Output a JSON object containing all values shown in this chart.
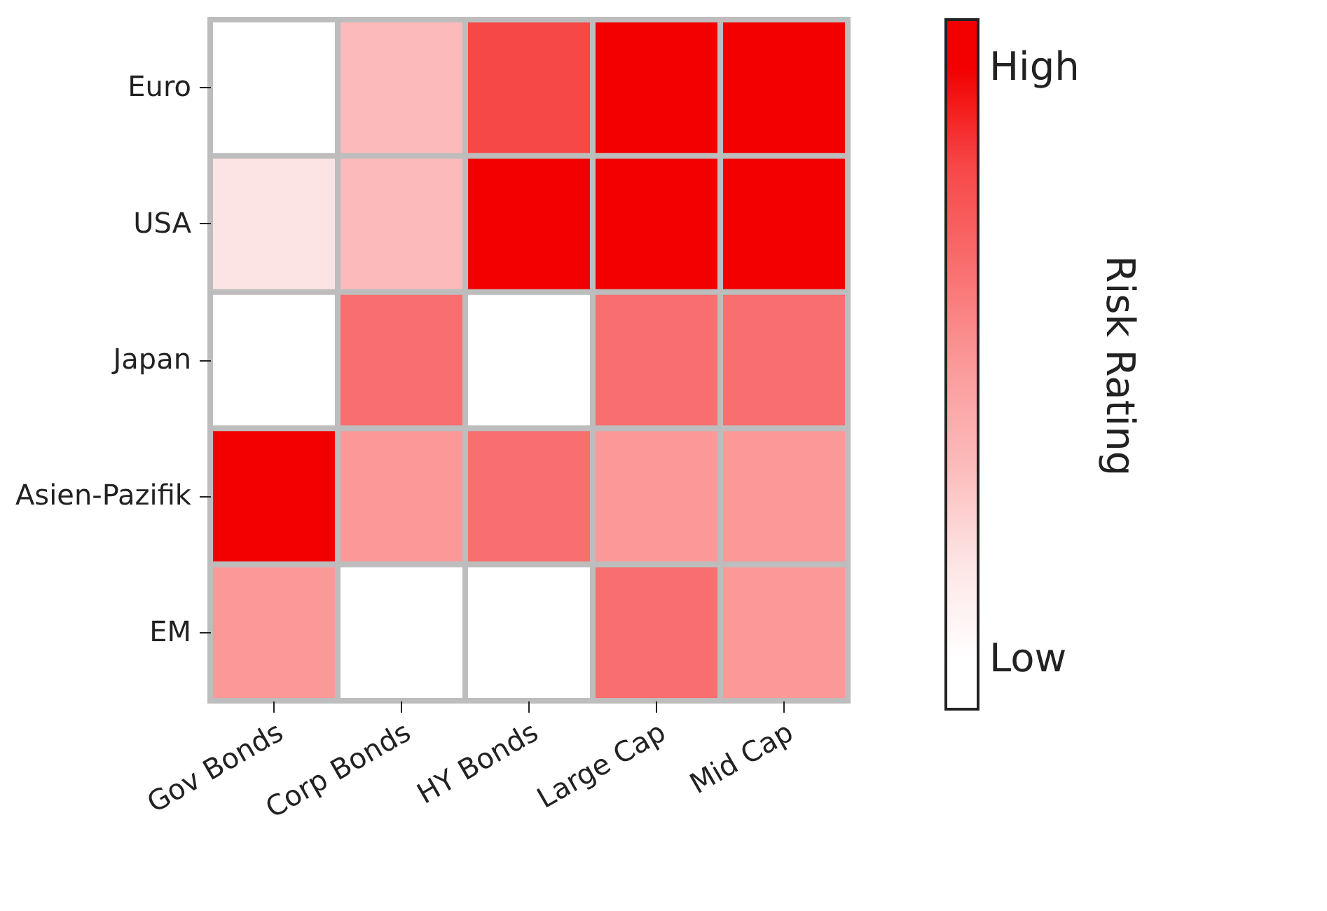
{
  "chart_data": {
    "type": "heatmap",
    "clabel": "Risk Rating",
    "categories": [
      "Gov Bonds",
      "Corp Bonds",
      "HY Bonds",
      "Large Cap",
      "Mid Cap"
    ],
    "y_categories": [
      "Euro",
      "USA",
      "Japan",
      "Asien-Pazifik",
      "EM"
    ],
    "cells": [
      [
        0,
        2,
        5,
        6,
        6
      ],
      [
        1,
        2,
        6,
        6,
        6
      ],
      [
        0,
        4,
        0,
        4,
        4
      ],
      [
        6,
        3,
        4,
        3,
        3
      ],
      [
        3,
        0,
        0,
        4,
        3
      ]
    ],
    "clim": [
      -0.5,
      6.5
    ],
    "cticks": [
      {
        "value": 0,
        "label": "Low"
      },
      {
        "value": 6,
        "label": "High"
      }
    ]
  }
}
